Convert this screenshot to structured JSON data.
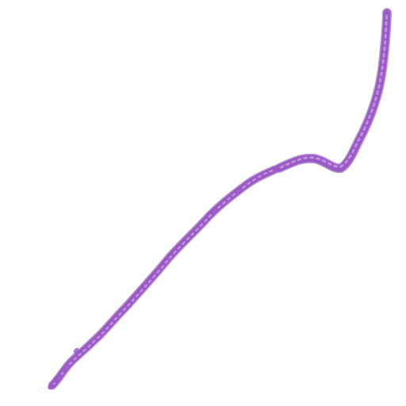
{
  "image": {
    "background": "#ffffff",
    "tissue_color": "#9b59c6",
    "tissue_highlight": "#c39be0",
    "tissue_dark": "#7d3fae"
  }
}
